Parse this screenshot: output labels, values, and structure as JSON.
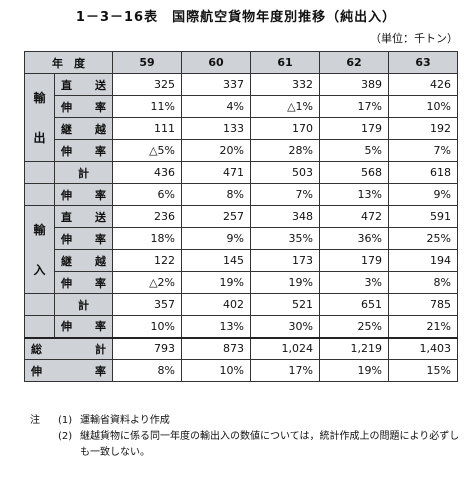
{
  "title": "1－3－16表　国際航空貨物年度別推移（純出入）",
  "unit": "（単位：千トン）",
  "header": {
    "year_label": "年　度",
    "years": [
      "59",
      "60",
      "61",
      "62",
      "63"
    ]
  },
  "sections": [
    {
      "label": "輸出",
      "label_chars": [
        "輸",
        "出"
      ],
      "rows": [
        {
          "label": "直送",
          "values": [
            "325",
            "337",
            "332",
            "389",
            "426"
          ]
        },
        {
          "label": "伸率",
          "values": [
            "11%",
            "4%",
            "△1%",
            "17%",
            "10%"
          ]
        },
        {
          "label": "継越",
          "values": [
            "111",
            "133",
            "170",
            "179",
            "192"
          ]
        },
        {
          "label": "伸率",
          "values": [
            "△5%",
            "20%",
            "28%",
            "5%",
            "7%"
          ]
        }
      ],
      "total": {
        "label": "計",
        "values": [
          "436",
          "471",
          "503",
          "568",
          "618"
        ]
      },
      "total_rate": {
        "label": "伸率",
        "values": [
          "6%",
          "8%",
          "7%",
          "13%",
          "9%"
        ]
      }
    },
    {
      "label": "輸入",
      "label_chars": [
        "輸",
        "入"
      ],
      "rows": [
        {
          "label": "直送",
          "values": [
            "236",
            "257",
            "348",
            "472",
            "591"
          ]
        },
        {
          "label": "伸率",
          "values": [
            "18%",
            "9%",
            "35%",
            "36%",
            "25%"
          ]
        },
        {
          "label": "継越",
          "values": [
            "122",
            "145",
            "173",
            "179",
            "194"
          ]
        },
        {
          "label": "伸率",
          "values": [
            "△2%",
            "19%",
            "19%",
            "3%",
            "8%"
          ]
        }
      ],
      "total": {
        "label": "計",
        "values": [
          "357",
          "402",
          "521",
          "651",
          "785"
        ]
      },
      "total_rate": {
        "label": "伸率",
        "values": [
          "10%",
          "13%",
          "30%",
          "25%",
          "21%"
        ]
      }
    }
  ],
  "grand_total": {
    "label": "総計",
    "values": [
      "793",
      "873",
      "1,024",
      "1,219",
      "1,403"
    ]
  },
  "grand_rate": {
    "label": "伸率",
    "values": [
      "8%",
      "10%",
      "17%",
      "19%",
      "15%"
    ]
  },
  "notes": {
    "prefix": "注",
    "items": [
      {
        "num": "(1)",
        "text": "運輸省資料より作成"
      },
      {
        "num": "(2)",
        "text": "継越貨物に係る同一年度の輸出入の数値については，統計作成上の問題により必ずしも一致しない。"
      }
    ]
  }
}
